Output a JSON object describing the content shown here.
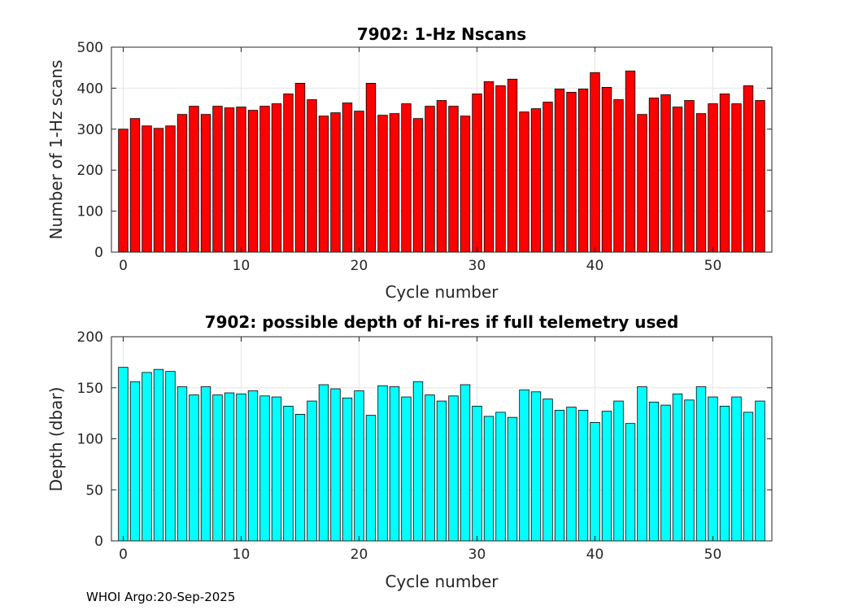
{
  "footer": "WHOI Argo:20-Sep-2025",
  "chart_data": [
    {
      "type": "bar",
      "title": "7902: 1-Hz Nscans",
      "xlabel": "Cycle number",
      "ylabel": "Number of 1-Hz scans",
      "xlim": [
        -1,
        55
      ],
      "ylim": [
        0,
        500
      ],
      "xticks": [
        0,
        10,
        20,
        30,
        40,
        50
      ],
      "yticks": [
        0,
        100,
        200,
        300,
        400,
        500
      ],
      "grid": true,
      "color": "#ff0000",
      "x": [
        0,
        1,
        2,
        3,
        4,
        5,
        6,
        7,
        8,
        9,
        10,
        11,
        12,
        13,
        14,
        15,
        16,
        17,
        18,
        19,
        20,
        21,
        22,
        23,
        24,
        25,
        26,
        27,
        28,
        29,
        30,
        31,
        32,
        33,
        34,
        35,
        36,
        37,
        38,
        39,
        40,
        41,
        42,
        43,
        44,
        45,
        46,
        47,
        48,
        49,
        50,
        51,
        52,
        53,
        54
      ],
      "values": [
        300,
        326,
        308,
        302,
        308,
        336,
        356,
        336,
        356,
        352,
        354,
        346,
        356,
        362,
        386,
        412,
        372,
        332,
        340,
        364,
        344,
        412,
        334,
        338,
        362,
        326,
        356,
        370,
        356,
        332,
        386,
        416,
        406,
        422,
        342,
        350,
        366,
        398,
        390,
        398,
        438,
        402,
        372,
        442,
        336,
        376,
        384,
        354,
        370,
        338,
        362,
        386,
        362,
        406,
        370
      ]
    },
    {
      "type": "bar",
      "title": "7902: possible depth of hi-res if full telemetry used",
      "xlabel": "Cycle number",
      "ylabel": "Depth (dbar)",
      "xlim": [
        -1,
        55
      ],
      "ylim": [
        0,
        200
      ],
      "xticks": [
        0,
        10,
        20,
        30,
        40,
        50
      ],
      "yticks": [
        0,
        50,
        100,
        150,
        200
      ],
      "grid": true,
      "color": "#00ffff",
      "x": [
        0,
        1,
        2,
        3,
        4,
        5,
        6,
        7,
        8,
        9,
        10,
        11,
        12,
        13,
        14,
        15,
        16,
        17,
        18,
        19,
        20,
        21,
        22,
        23,
        24,
        25,
        26,
        27,
        28,
        29,
        30,
        31,
        32,
        33,
        34,
        35,
        36,
        37,
        38,
        39,
        40,
        41,
        42,
        43,
        44,
        45,
        46,
        47,
        48,
        49,
        50,
        51,
        52,
        53,
        54
      ],
      "values": [
        170,
        156,
        165,
        168,
        166,
        151,
        143,
        151,
        143,
        145,
        144,
        147,
        142,
        141,
        132,
        124,
        137,
        153,
        149,
        140,
        147,
        123,
        152,
        151,
        141,
        156,
        143,
        137,
        142,
        153,
        132,
        122,
        126,
        121,
        148,
        146,
        139,
        128,
        131,
        128,
        116,
        127,
        137,
        115,
        151,
        136,
        133,
        144,
        138,
        151,
        141,
        132,
        141,
        126,
        137
      ]
    }
  ]
}
